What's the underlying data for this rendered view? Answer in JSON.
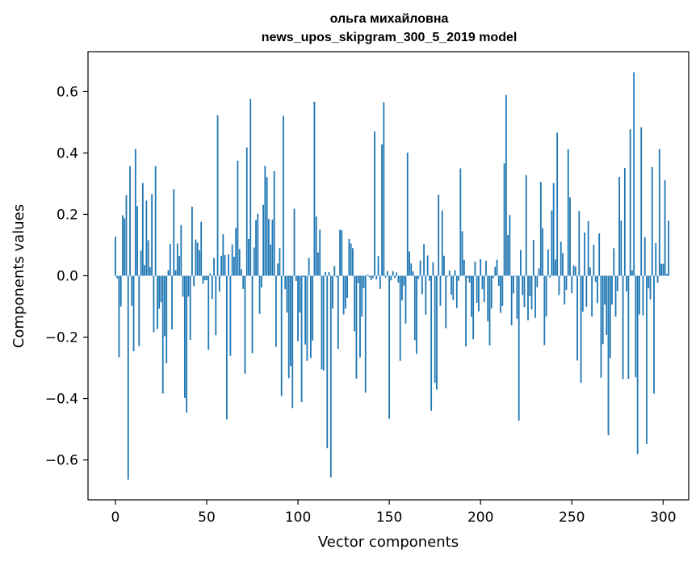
{
  "chart_data": {
    "type": "bar",
    "title": "ольга михайловна",
    "subtitle": "news_upos_skipgram_300_5_2019 model",
    "xlabel": "Vector components",
    "ylabel": "Components values",
    "xlim": [
      -15,
      314
    ],
    "ylim": [
      -0.73,
      0.73
    ],
    "xticks": [
      0,
      50,
      100,
      150,
      200,
      250,
      300
    ],
    "yticks": [
      -0.6,
      -0.4,
      -0.2,
      0.0,
      0.2,
      0.4,
      0.6
    ],
    "xtick_labels": [
      "0",
      "50",
      "100",
      "150",
      "200",
      "250",
      "300"
    ],
    "ytick_labels": [
      "−0.6",
      "−0.4",
      "−0.2",
      "0.0",
      "0.2",
      "0.4",
      "0.6"
    ],
    "bar_color": "#1f77b4",
    "grid": false,
    "values": [
      0.127,
      -0.009,
      -0.265,
      -0.1,
      0.197,
      0.187,
      0.263,
      -0.664,
      0.357,
      -0.098,
      -0.246,
      0.413,
      0.227,
      -0.229,
      0.082,
      0.302,
      0.035,
      0.245,
      0.116,
      0.028,
      0.266,
      -0.184,
      0.357,
      -0.174,
      -0.107,
      -0.086,
      -0.384,
      -0.197,
      -0.285,
      0.018,
      0.104,
      -0.175,
      0.282,
      0.018,
      0.105,
      0.064,
      0.165,
      -0.068,
      -0.398,
      -0.446,
      -0.068,
      -0.209,
      0.225,
      -0.034,
      0.118,
      0.108,
      0.083,
      0.176,
      -0.026,
      -0.015,
      -0.014,
      -0.241,
      0.008,
      -0.076,
      0.058,
      -0.194,
      0.523,
      -0.052,
      0.065,
      0.135,
      0.067,
      -0.468,
      0.07,
      -0.261,
      0.102,
      0.062,
      0.156,
      0.375,
      0.087,
      0.021,
      -0.043,
      -0.319,
      0.418,
      0.12,
      0.576,
      -0.252,
      0.092,
      0.181,
      0.202,
      -0.124,
      -0.038,
      0.231,
      0.358,
      0.321,
      0.185,
      0.102,
      0.183,
      0.341,
      -0.231,
      0.04,
      0.09,
      -0.392,
      0.521,
      -0.044,
      -0.12,
      -0.334,
      -0.294,
      -0.431,
      0.218,
      -0.017,
      -0.213,
      -0.12,
      -0.412,
      -0.004,
      -0.224,
      -0.277,
      0.058,
      -0.268,
      -0.211,
      0.567,
      0.193,
      0.076,
      0.15,
      -0.305,
      -0.309,
      0.012,
      -0.562,
      0.012,
      -0.657,
      -0.107,
      0.032,
      -0.004,
      -0.238,
      0.15,
      0.148,
      -0.126,
      -0.107,
      -0.072,
      0.12,
      0.105,
      0.09,
      -0.181,
      -0.335,
      -0.024,
      -0.266,
      -0.133,
      -0.04,
      -0.381,
      0.003,
      -0.004,
      -0.014,
      -0.008,
      0.47,
      -0.012,
      0.064,
      -0.043,
      0.428,
      0.565,
      -0.006,
      0.015,
      -0.466,
      -0.015,
      0.015,
      -0.007,
      0.011,
      -0.022,
      -0.277,
      -0.08,
      -0.032,
      -0.156,
      0.401,
      0.079,
      0.04,
      0.014,
      -0.21,
      -0.254,
      -0.01,
      0.05,
      -0.06,
      0.103,
      -0.127,
      0.066,
      -0.016,
      -0.44,
      0.044,
      -0.349,
      -0.371,
      0.264,
      -0.098,
      0.213,
      0.065,
      -0.171,
      -0.003,
      0.017,
      -0.062,
      -0.079,
      0.018,
      -0.105,
      -0.016,
      0.35,
      0.145,
      0.052,
      -0.23,
      -0.007,
      -0.022,
      -0.134,
      -0.207,
      0.046,
      -0.088,
      -0.116,
      0.054,
      -0.044,
      -0.086,
      0.049,
      -0.148,
      -0.227,
      -0.106,
      -0.007,
      0.029,
      0.052,
      -0.033,
      -0.121,
      -0.098,
      0.366,
      0.589,
      0.133,
      0.198,
      -0.161,
      -0.058,
      -0.002,
      -0.14,
      -0.472,
      0.084,
      -0.063,
      -0.102,
      0.328,
      -0.145,
      -0.066,
      -0.11,
      0.117,
      -0.137,
      -0.037,
      0.024,
      0.306,
      0.155,
      -0.226,
      -0.132,
      0.086,
      -0.006,
      0.213,
      0.302,
      0.053,
      0.466,
      -0.063,
      0.111,
      0.074,
      -0.094,
      -0.046,
      0.412,
      0.255,
      -0.057,
      0.034,
      0.03,
      -0.276,
      0.211,
      -0.349,
      -0.117,
      0.141,
      -0.101,
      0.178,
      0.027,
      -0.133,
      0.101,
      -0.02,
      -0.089,
      0.138,
      -0.332,
      -0.223,
      -0.094,
      -0.193,
      -0.52,
      -0.268,
      -0.094,
      0.09,
      -0.133,
      -0.05,
      0.322,
      0.18,
      -0.337,
      0.351,
      -0.051,
      -0.336,
      0.477,
      0.018,
      0.663,
      -0.331,
      -0.581,
      -0.126,
      0.484,
      -0.129,
      0.125,
      -0.548,
      -0.041,
      -0.077,
      0.354,
      -0.384,
      0.107,
      -0.023,
      0.413,
      0.039,
      0.039,
      0.311,
      0.006,
      0.179
    ]
  }
}
